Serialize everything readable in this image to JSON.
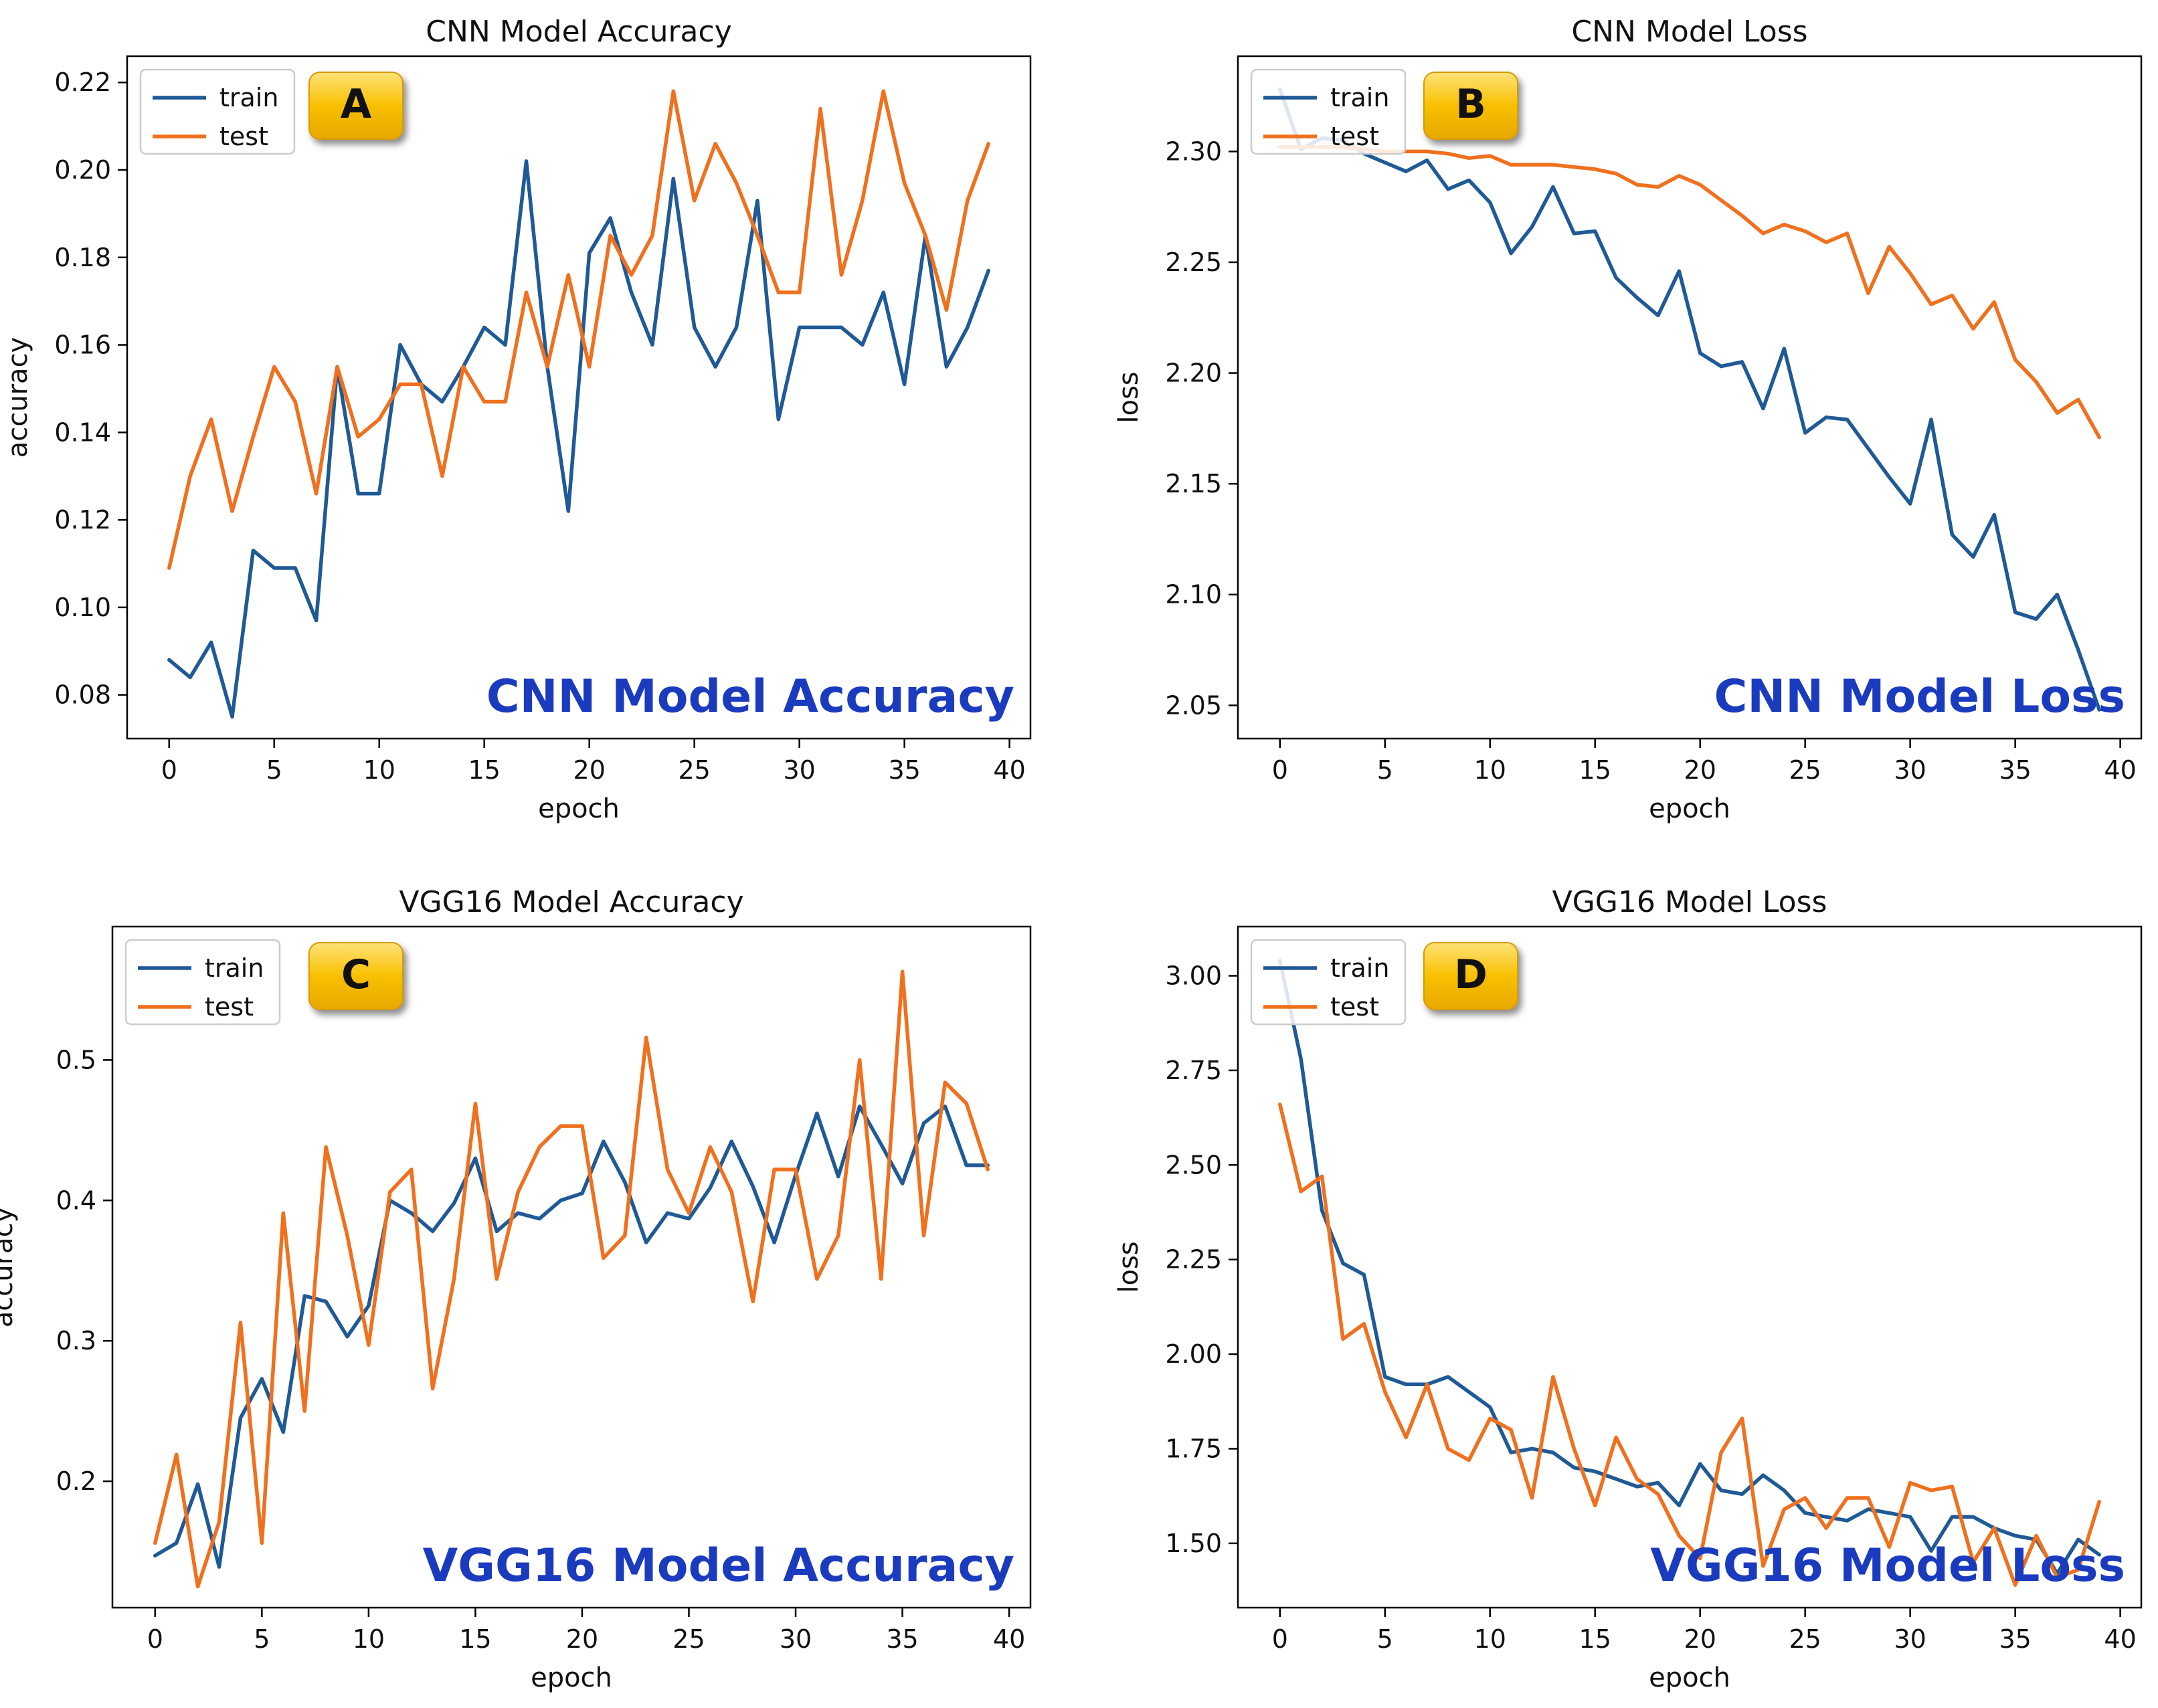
{
  "chart_data": [
    {
      "id": "A",
      "type": "line",
      "title": "CNN Model Accuracy",
      "xlabel": "epoch",
      "ylabel": "accuracy",
      "badge": "A",
      "overlay": "CNN Model Accuracy",
      "xlim": [
        -2,
        41
      ],
      "ylim": [
        0.07,
        0.226
      ],
      "xticks": [
        0,
        5,
        10,
        15,
        20,
        25,
        30,
        35,
        40
      ],
      "xtick_labels": [
        "0",
        "5",
        "10",
        "15",
        "20",
        "25",
        "30",
        "35",
        "40"
      ],
      "yticks": [
        0.08,
        0.1,
        0.12,
        0.14,
        0.16,
        0.18,
        0.2,
        0.22
      ],
      "ytick_labels": [
        "0.08",
        "0.10",
        "0.12",
        "0.14",
        "0.16",
        "0.18",
        "0.20",
        "0.22"
      ],
      "legend": "top-left",
      "series": [
        {
          "name": "train",
          "color": "#1f5a96",
          "values": [
            0.088,
            0.084,
            0.092,
            0.075,
            0.113,
            0.109,
            0.109,
            0.097,
            0.155,
            0.126,
            0.126,
            0.16,
            0.151,
            0.147,
            0.155,
            0.164,
            0.16,
            0.202,
            0.155,
            0.122,
            0.181,
            0.189,
            0.172,
            0.16,
            0.198,
            0.164,
            0.155,
            0.164,
            0.193,
            0.143,
            0.164,
            0.164,
            0.164,
            0.16,
            0.172,
            0.151,
            0.185,
            0.155,
            0.164,
            0.177
          ]
        },
        {
          "name": "test",
          "color": "#f0701e",
          "values": [
            0.109,
            0.13,
            0.143,
            0.122,
            0.139,
            0.155,
            0.147,
            0.126,
            0.155,
            0.139,
            0.143,
            0.151,
            0.151,
            0.13,
            0.155,
            0.147,
            0.147,
            0.172,
            0.155,
            0.176,
            0.155,
            0.185,
            0.176,
            0.185,
            0.218,
            0.193,
            0.206,
            0.197,
            0.185,
            0.172,
            0.172,
            0.214,
            0.176,
            0.193,
            0.218,
            0.197,
            0.185,
            0.168,
            0.193,
            0.206
          ]
        }
      ]
    },
    {
      "id": "B",
      "type": "line",
      "title": "CNN Model Loss",
      "xlabel": "epoch",
      "ylabel": "loss",
      "badge": "B",
      "overlay": "CNN Model Loss",
      "xlim": [
        -2,
        41
      ],
      "ylim": [
        2.035,
        2.343
      ],
      "xticks": [
        0,
        5,
        10,
        15,
        20,
        25,
        30,
        35,
        40
      ],
      "xtick_labels": [
        "0",
        "5",
        "10",
        "15",
        "20",
        "25",
        "30",
        "35",
        "40"
      ],
      "yticks": [
        2.05,
        2.1,
        2.15,
        2.2,
        2.25,
        2.3
      ],
      "ytick_labels": [
        "2.05",
        "2.10",
        "2.15",
        "2.20",
        "2.25",
        "2.30"
      ],
      "legend": "top-left",
      "series": [
        {
          "name": "train",
          "color": "#1f5a96",
          "values": [
            2.328,
            2.301,
            2.306,
            2.305,
            2.299,
            2.295,
            2.291,
            2.296,
            2.283,
            2.287,
            2.277,
            2.254,
            2.266,
            2.284,
            2.263,
            2.264,
            2.243,
            2.234,
            2.226,
            2.246,
            2.209,
            2.203,
            2.205,
            2.184,
            2.211,
            2.173,
            2.18,
            2.179,
            2.166,
            2.153,
            2.141,
            2.179,
            2.127,
            2.117,
            2.136,
            2.092,
            2.089,
            2.1,
            2.075,
            2.048
          ]
        },
        {
          "name": "test",
          "color": "#f0701e",
          "values": [
            2.302,
            2.302,
            2.302,
            2.302,
            2.301,
            2.3,
            2.3,
            2.3,
            2.299,
            2.297,
            2.298,
            2.294,
            2.294,
            2.294,
            2.293,
            2.292,
            2.29,
            2.285,
            2.284,
            2.289,
            2.285,
            2.278,
            2.271,
            2.263,
            2.267,
            2.264,
            2.259,
            2.263,
            2.236,
            2.257,
            2.245,
            2.231,
            2.235,
            2.22,
            2.232,
            2.206,
            2.196,
            2.182,
            2.188,
            2.171
          ]
        }
      ]
    },
    {
      "id": "C",
      "type": "line",
      "title": "VGG16 Model Accuracy",
      "xlabel": "epoch",
      "ylabel": "accuracy",
      "badge": "C",
      "overlay": "VGG16 Model Accuracy",
      "xlim": [
        -2,
        41
      ],
      "ylim": [
        0.11,
        0.595
      ],
      "xticks": [
        0,
        5,
        10,
        15,
        20,
        25,
        30,
        35,
        40
      ],
      "xtick_labels": [
        "0",
        "5",
        "10",
        "15",
        "20",
        "25",
        "30",
        "35",
        "40"
      ],
      "yticks": [
        0.2,
        0.3,
        0.4,
        0.5
      ],
      "ytick_labels": [
        "0.2",
        "0.3",
        "0.4",
        "0.5"
      ],
      "legend": "top-left",
      "series": [
        {
          "name": "train",
          "color": "#1f5a96",
          "values": [
            0.147,
            0.156,
            0.198,
            0.139,
            0.245,
            0.273,
            0.235,
            0.332,
            0.328,
            0.303,
            0.325,
            0.4,
            0.391,
            0.378,
            0.398,
            0.43,
            0.378,
            0.391,
            0.387,
            0.4,
            0.405,
            0.442,
            0.413,
            0.37,
            0.391,
            0.387,
            0.409,
            0.442,
            0.41,
            0.37,
            0.418,
            0.462,
            0.417,
            0.467,
            0.44,
            0.412,
            0.455,
            0.467,
            0.425,
            0.425
          ]
        },
        {
          "name": "test",
          "color": "#f0701e",
          "values": [
            0.156,
            0.219,
            0.125,
            0.171,
            0.313,
            0.156,
            0.391,
            0.25,
            0.438,
            0.375,
            0.297,
            0.406,
            0.422,
            0.266,
            0.344,
            0.469,
            0.344,
            0.406,
            0.438,
            0.453,
            0.453,
            0.359,
            0.375,
            0.516,
            0.422,
            0.391,
            0.438,
            0.406,
            0.328,
            0.422,
            0.422,
            0.344,
            0.375,
            0.5,
            0.344,
            0.563,
            0.375,
            0.484,
            0.469,
            0.422
          ]
        }
      ]
    },
    {
      "id": "D",
      "type": "line",
      "title": "VGG16 Model Loss",
      "xlabel": "epoch",
      "ylabel": "loss",
      "badge": "D",
      "overlay": "VGG16 Model Loss",
      "xlim": [
        -2,
        41
      ],
      "ylim": [
        1.33,
        3.13
      ],
      "xticks": [
        0,
        5,
        10,
        15,
        20,
        25,
        30,
        35,
        40
      ],
      "xtick_labels": [
        "0",
        "5",
        "10",
        "15",
        "20",
        "25",
        "30",
        "35",
        "40"
      ],
      "yticks": [
        1.5,
        1.75,
        2.0,
        2.25,
        2.5,
        2.75,
        3.0
      ],
      "ytick_labels": [
        "1.50",
        "1.75",
        "2.00",
        "2.25",
        "2.50",
        "2.75",
        "3.00"
      ],
      "legend": "top-left",
      "series": [
        {
          "name": "train",
          "color": "#1f5a96",
          "values": [
            3.04,
            2.78,
            2.38,
            2.24,
            2.21,
            1.94,
            1.92,
            1.92,
            1.94,
            1.9,
            1.86,
            1.74,
            1.75,
            1.74,
            1.7,
            1.69,
            1.67,
            1.65,
            1.66,
            1.6,
            1.71,
            1.64,
            1.63,
            1.68,
            1.64,
            1.58,
            1.57,
            1.56,
            1.59,
            1.58,
            1.57,
            1.48,
            1.57,
            1.57,
            1.54,
            1.52,
            1.51,
            1.42,
            1.51,
            1.47
          ]
        },
        {
          "name": "test",
          "color": "#f0701e",
          "values": [
            2.66,
            2.43,
            2.47,
            2.04,
            2.08,
            1.9,
            1.78,
            1.92,
            1.75,
            1.72,
            1.83,
            1.8,
            1.62,
            1.94,
            1.75,
            1.6,
            1.78,
            1.67,
            1.63,
            1.52,
            1.46,
            1.74,
            1.83,
            1.44,
            1.59,
            1.62,
            1.54,
            1.62,
            1.62,
            1.49,
            1.66,
            1.64,
            1.65,
            1.45,
            1.54,
            1.39,
            1.52,
            1.41,
            1.43,
            1.61
          ]
        }
      ]
    }
  ]
}
